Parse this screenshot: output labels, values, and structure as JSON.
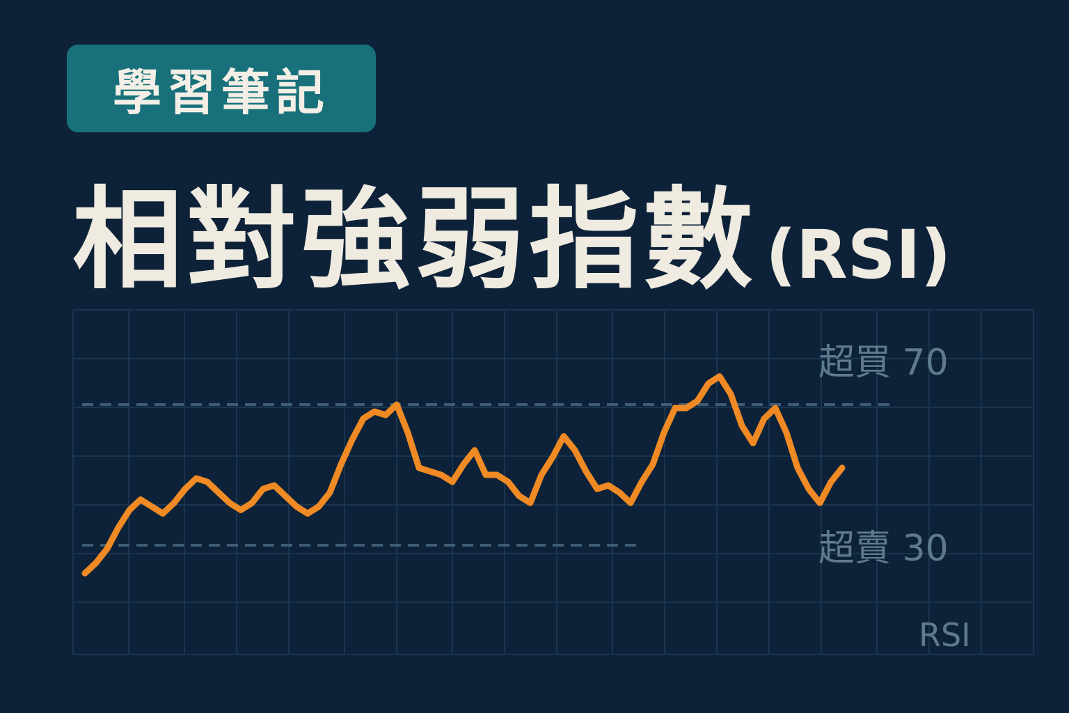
{
  "badge": {
    "text": "學習筆記"
  },
  "title": {
    "main": "相對強弱指數",
    "abbr": "(RSI)"
  },
  "colors": {
    "background": "#0d2238",
    "badge": "#18717a",
    "title": "#efebe0",
    "line": "#f08a24",
    "grid": "#1a3550",
    "reference": "#3f5c75",
    "label": "#5f7a8c"
  },
  "chart_data": {
    "type": "line",
    "title": "",
    "xlabel": "",
    "ylabel": "RSI",
    "ylim": [
      10,
      85
    ],
    "grid": true,
    "series": [
      {
        "name": "",
        "values": [
          22,
          25,
          29,
          35,
          40,
          43,
          41,
          39,
          42,
          46,
          49,
          48,
          45,
          42,
          40,
          42,
          46,
          47,
          44,
          41,
          39,
          41,
          45,
          53,
          60,
          66,
          68,
          67,
          70,
          62,
          52,
          51,
          50,
          48,
          53,
          57,
          50,
          50,
          48,
          44,
          42,
          50,
          55,
          61,
          57,
          51,
          46,
          47,
          45,
          42,
          48,
          53,
          62,
          69,
          69,
          71,
          76,
          78,
          73,
          64,
          59,
          66,
          69,
          62,
          52,
          46,
          42,
          48,
          52
        ]
      }
    ],
    "reference_lines": [
      {
        "label": "超買 70",
        "value": 70
      },
      {
        "label": "超賣 30",
        "value": 30
      }
    ]
  }
}
